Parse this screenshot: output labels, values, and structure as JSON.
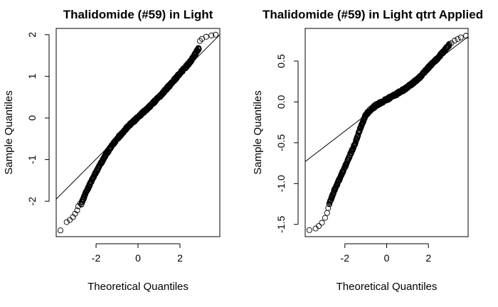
{
  "chart_data": [
    {
      "type": "scatter",
      "title": "Thalidomide (#59) in Light",
      "xlabel": "Theoretical Quantiles",
      "ylabel": "Sample Quantiles",
      "xlim": [
        -3.9,
        3.9
      ],
      "ylim": [
        -2.85,
        2.15
      ],
      "x_ticks": [
        -2,
        0,
        2
      ],
      "y_ticks": [
        -2,
        -1,
        0,
        1,
        2
      ],
      "grid": false,
      "legend": "none",
      "reference_line": {
        "x": [
          -4,
          4
        ],
        "y": [
          -2.0,
          2.05
        ]
      },
      "tail_points": [
        {
          "x": -3.7,
          "y": -2.7
        },
        {
          "x": -3.4,
          "y": -2.5
        },
        {
          "x": -3.25,
          "y": -2.45
        },
        {
          "x": -3.1,
          "y": -2.38
        },
        {
          "x": -3.0,
          "y": -2.3
        },
        {
          "x": -2.9,
          "y": -2.22
        },
        {
          "x": -2.85,
          "y": -2.12
        },
        {
          "x": -2.75,
          "y": -2.05
        },
        {
          "x": 2.95,
          "y": 1.85
        },
        {
          "x": 3.05,
          "y": 1.9
        },
        {
          "x": 3.25,
          "y": 1.95
        },
        {
          "x": 3.5,
          "y": 1.98
        },
        {
          "x": 3.7,
          "y": 2.0
        }
      ],
      "body_curve": [
        {
          "x": -2.7,
          "y": -2.05
        },
        {
          "x": -2.4,
          "y": -1.7
        },
        {
          "x": -2.0,
          "y": -1.3
        },
        {
          "x": -1.5,
          "y": -0.85
        },
        {
          "x": -1.0,
          "y": -0.5
        },
        {
          "x": -0.5,
          "y": -0.22
        },
        {
          "x": 0.0,
          "y": 0.02
        },
        {
          "x": 0.5,
          "y": 0.25
        },
        {
          "x": 1.0,
          "y": 0.5
        },
        {
          "x": 1.5,
          "y": 0.78
        },
        {
          "x": 2.0,
          "y": 1.07
        },
        {
          "x": 2.5,
          "y": 1.35
        },
        {
          "x": 2.9,
          "y": 1.68
        }
      ]
    },
    {
      "type": "scatter",
      "title": "Thalidomide (#59) in Light qtrt Applied",
      "xlabel": "Theoretical Quantiles",
      "ylabel": "Sample Quantiles",
      "xlim": [
        -3.9,
        3.9
      ],
      "ylim": [
        -1.65,
        0.9
      ],
      "x_ticks": [
        -2,
        0,
        2
      ],
      "y_ticks": [
        -1.5,
        -1.0,
        -0.5,
        0.0,
        0.5
      ],
      "y_tick_labels": [
        "-1.5",
        "-1.0",
        "-0.5",
        "0.0",
        "0.5"
      ],
      "grid": false,
      "legend": "none",
      "reference_line": {
        "x": [
          -4,
          4
        ],
        "y": [
          -0.75,
          0.82
        ]
      },
      "tail_points": [
        {
          "x": -3.7,
          "y": -1.57
        },
        {
          "x": -3.4,
          "y": -1.55
        },
        {
          "x": -3.25,
          "y": -1.52
        },
        {
          "x": -3.1,
          "y": -1.48
        },
        {
          "x": -2.95,
          "y": -1.42
        },
        {
          "x": -2.85,
          "y": -1.36
        },
        {
          "x": -2.8,
          "y": -1.3
        },
        {
          "x": 3.1,
          "y": 0.72
        },
        {
          "x": 3.25,
          "y": 0.75
        },
        {
          "x": 3.4,
          "y": 0.77
        },
        {
          "x": 3.55,
          "y": 0.79
        },
        {
          "x": 3.8,
          "y": 0.81
        }
      ],
      "body_curve": [
        {
          "x": -2.75,
          "y": -1.25
        },
        {
          "x": -2.5,
          "y": -1.08
        },
        {
          "x": -2.0,
          "y": -0.8
        },
        {
          "x": -1.5,
          "y": -0.5
        },
        {
          "x": -1.2,
          "y": -0.28
        },
        {
          "x": -1.0,
          "y": -0.16
        },
        {
          "x": -0.8,
          "y": -0.1
        },
        {
          "x": -0.5,
          "y": -0.04
        },
        {
          "x": 0.0,
          "y": 0.03
        },
        {
          "x": 0.5,
          "y": 0.1
        },
        {
          "x": 1.0,
          "y": 0.18
        },
        {
          "x": 1.5,
          "y": 0.28
        },
        {
          "x": 2.0,
          "y": 0.42
        },
        {
          "x": 2.5,
          "y": 0.55
        },
        {
          "x": 3.0,
          "y": 0.7
        }
      ]
    }
  ]
}
